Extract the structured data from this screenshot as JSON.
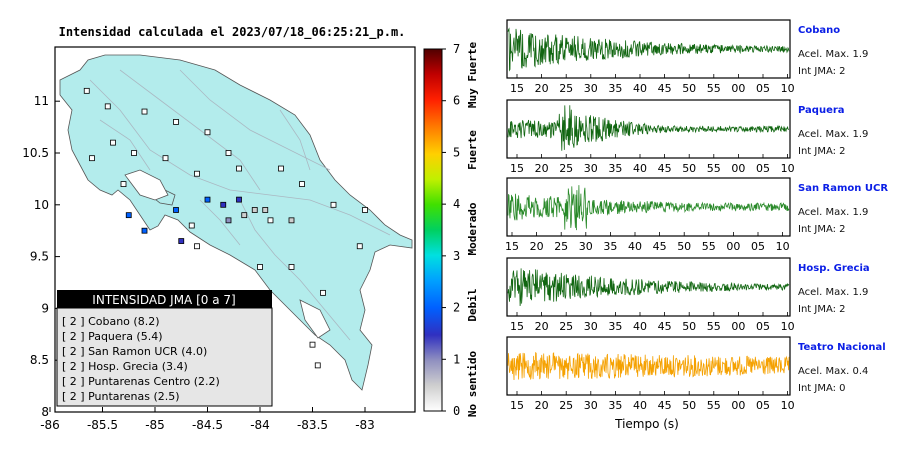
{
  "header": {
    "title": "Intensidad calculada el 2023/07/18_06:25:21_p.m."
  },
  "map": {
    "lon_ticks": [
      "-86",
      "-85.5",
      "-85",
      "-84.5",
      "-84",
      "-83.5",
      "-83"
    ],
    "lat_ticks": [
      "11",
      "10.5",
      "10",
      "9.5",
      "9",
      "8.5",
      "8"
    ],
    "land_color": "#b3ecec",
    "sea_color": "#ffffff"
  },
  "legend": {
    "title": "INTENSIDAD JMA [0 a 7]",
    "items": [
      "[ 2 ] Cobano (8.2)",
      "[ 2 ] Paquera (5.4)",
      "[ 2 ] San Ramon UCR (4.0)",
      "[ 2 ] Hosp. Grecia (3.4)",
      "[ 2 ] Puntarenas Centro (2.2)",
      "[ 2 ] Puntarenas (2.5)"
    ]
  },
  "colorbar": {
    "ticks": [
      "0",
      "1",
      "2",
      "3",
      "4",
      "5",
      "6",
      "7"
    ],
    "labels": [
      "No sentido",
      "Debil",
      "Moderado",
      "Fuerte",
      "Muy Fuerte"
    ]
  },
  "waveforms": {
    "xaxis_label": "Tiempo (s)",
    "ticks_a": [
      "15",
      "20",
      "25",
      "30",
      "35",
      "40",
      "45",
      "50",
      "55",
      "00",
      "05",
      "10"
    ],
    "ticks_b": [
      "15",
      "20",
      "25",
      "30",
      "35",
      "40",
      "45",
      "50",
      "55",
      "00",
      "05",
      "10"
    ],
    "stations": [
      {
        "name": "Cobano",
        "acel": "Acel. Max. 1.9",
        "int": "Int JMA: 2",
        "color": "#116611",
        "tickset": "a"
      },
      {
        "name": "Paquera",
        "acel": "Acel. Max. 1.9",
        "int": "Int JMA: 2",
        "color": "#116611",
        "tickset": "a"
      },
      {
        "name": "San Ramon UCR",
        "acel": "Acel. Max. 1.9",
        "int": "Int JMA: 2",
        "color": "#2a8a2a",
        "tickset": "b"
      },
      {
        "name": "Hosp. Grecia",
        "acel": "Acel. Max. 1.9",
        "int": "Int JMA: 2",
        "color": "#116611",
        "tickset": "a"
      },
      {
        "name": "Teatro Nacional",
        "acel": "Acel. Max. 0.4",
        "int": "Int JMA: 0",
        "color": "#f5a100",
        "tickset": "a"
      }
    ]
  },
  "chart_data": {
    "type": "scatter",
    "title": "Intensidad calculada el 2023/07/18_06:25:21_p.m.",
    "xlabel": "",
    "ylabel": "",
    "xlim": [
      -86,
      -82.6
    ],
    "ylim": [
      8,
      11.4
    ],
    "colorbar_range": [
      0,
      7
    ],
    "points": [
      {
        "x": -85.65,
        "y": 11.1,
        "v": 0.3
      },
      {
        "x": -85.45,
        "y": 10.95,
        "v": 0.3
      },
      {
        "x": -85.1,
        "y": 10.9,
        "v": 0.3
      },
      {
        "x": -84.8,
        "y": 10.8,
        "v": 0.3
      },
      {
        "x": -84.5,
        "y": 10.7,
        "v": 0.3
      },
      {
        "x": -84.3,
        "y": 10.5,
        "v": 0.3
      },
      {
        "x": -85.4,
        "y": 10.6,
        "v": 0.3
      },
      {
        "x": -85.6,
        "y": 10.45,
        "v": 0.3
      },
      {
        "x": -85.2,
        "y": 10.5,
        "v": 0.3
      },
      {
        "x": -84.9,
        "y": 10.45,
        "v": 0.3
      },
      {
        "x": -85.3,
        "y": 10.2,
        "v": 0.3
      },
      {
        "x": -84.6,
        "y": 10.3,
        "v": 0.3
      },
      {
        "x": -84.2,
        "y": 10.35,
        "v": 0.3
      },
      {
        "x": -83.8,
        "y": 10.35,
        "v": 0.3
      },
      {
        "x": -83.6,
        "y": 10.2,
        "v": 0.3
      },
      {
        "x": -83.3,
        "y": 10.0,
        "v": 0.3
      },
      {
        "x": -83.0,
        "y": 9.95,
        "v": 0.3
      },
      {
        "x": -83.05,
        "y": 9.6,
        "v": 0.3
      },
      {
        "x": -83.7,
        "y": 9.4,
        "v": 0.3
      },
      {
        "x": -84.0,
        "y": 9.4,
        "v": 0.3
      },
      {
        "x": -83.4,
        "y": 9.15,
        "v": 0.3
      },
      {
        "x": -83.5,
        "y": 8.65,
        "v": 0.3
      },
      {
        "x": -83.45,
        "y": 8.45,
        "v": 0.3
      },
      {
        "x": -84.6,
        "y": 9.6,
        "v": 0.3
      },
      {
        "x": -84.8,
        "y": 9.95,
        "v": 2.0
      },
      {
        "x": -85.1,
        "y": 9.75,
        "v": 2.0
      },
      {
        "x": -85.25,
        "y": 9.9,
        "v": 2.0
      },
      {
        "x": -84.5,
        "y": 10.05,
        "v": 2.0
      },
      {
        "x": -84.35,
        "y": 10.0,
        "v": 1.8
      },
      {
        "x": -84.2,
        "y": 10.05,
        "v": 1.5
      },
      {
        "x": -84.05,
        "y": 9.95,
        "v": 0.8
      },
      {
        "x": -83.95,
        "y": 9.95,
        "v": 0.5
      },
      {
        "x": -84.15,
        "y": 9.9,
        "v": 0.5
      },
      {
        "x": -83.9,
        "y": 9.85,
        "v": 0.3
      },
      {
        "x": -84.3,
        "y": 9.85,
        "v": 1.0
      },
      {
        "x": -83.7,
        "y": 9.85,
        "v": 0.5
      },
      {
        "x": -84.75,
        "y": 9.65,
        "v": 1.5
      },
      {
        "x": -84.65,
        "y": 9.8,
        "v": 0.3
      }
    ]
  }
}
